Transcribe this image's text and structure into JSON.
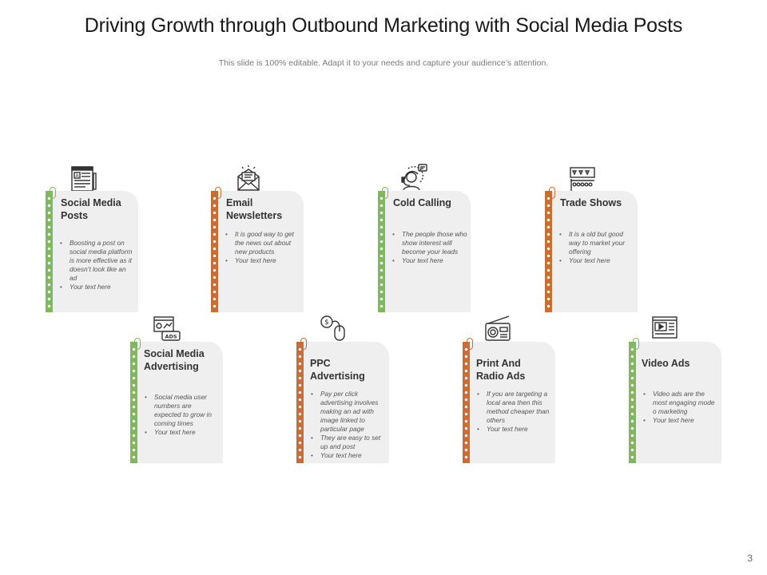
{
  "header": {
    "title": "Driving Growth through Outbound Marketing with Social Media Posts",
    "subtitle": "This slide is 100% editable. Adapt it to your needs and capture your audience’s attention."
  },
  "page_number": "3",
  "colors": {
    "green": "#7fba5a",
    "orange": "#c96d35",
    "card": "#efefef"
  },
  "cards": [
    {
      "title": "Social Media Posts",
      "icon": "newspaper-icon",
      "accent": "green",
      "bullets": [
        "Boosting a post on social media platform is more effective as it doesn’t look like an ad",
        "Your text here"
      ]
    },
    {
      "title": "Email Newsletters",
      "icon": "envelope-icon",
      "accent": "orange",
      "bullets": [
        "It is  good way to get the news out about new products",
        "Your text here"
      ]
    },
    {
      "title": "Cold Calling",
      "icon": "call-center-icon",
      "accent": "green",
      "bullets": [
        "The people those who show interest will become  your leads",
        "Your text here"
      ]
    },
    {
      "title": "Trade Shows",
      "icon": "trade-show-booth-icon",
      "accent": "orange",
      "bullets": [
        "It is a old but good way to market  your offering",
        "Your text here"
      ]
    },
    {
      "title": "Social Media Advertising",
      "icon": "ads-screen-icon",
      "accent": "green",
      "bullets": [
        "Social media  user numbers  are expected to grow in coming  times",
        "Your text here"
      ]
    },
    {
      "title": "PPC Advertising",
      "icon": "pay-per-click-icon",
      "accent": "orange",
      "bullets": [
        "Pay per click advertising involves making  an ad with image  linked to particular page",
        "They are easy to set up and post",
        "Your text here"
      ]
    },
    {
      "title": "Print And Radio Ads",
      "icon": "radio-icon",
      "accent": "orange",
      "bullets": [
        "If you are targeting a local area then this method  cheaper than others",
        "Your text here"
      ]
    },
    {
      "title": "Video Ads",
      "icon": "video-player-icon",
      "accent": "green",
      "bullets": [
        "Video ads are the most engaging mode o marketing",
        "Your text here"
      ]
    }
  ]
}
